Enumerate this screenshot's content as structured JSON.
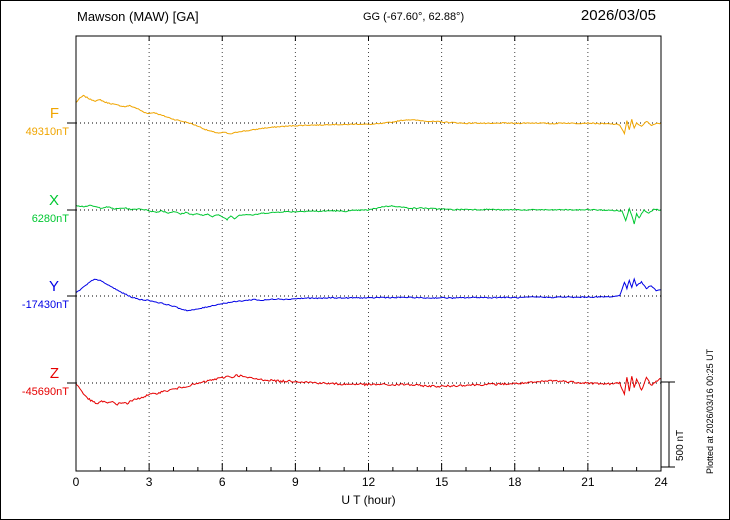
{
  "header": {
    "station": "Mawson (MAW)  [GA]",
    "coords": "GG (-67.60°,  62.88°)",
    "date": "2026/03/05"
  },
  "footer": {
    "plotted_at": "Plotted at 2026/03/16 00:25 UT"
  },
  "scale_bar": {
    "label": "500 nT",
    "nT": 500
  },
  "chart_data": {
    "type": "line",
    "title": "Mawson (MAW) [GA] magnetogram 2026/03/05",
    "xlabel": "U T (hour)",
    "xlim": [
      0,
      24
    ],
    "x_ticks": [
      0,
      3,
      6,
      9,
      12,
      15,
      18,
      21,
      24
    ],
    "grid": "dotted vertical at 3-hour intervals, dotted horizontal baseline per trace",
    "scale_nT_per_div": 500,
    "series": [
      {
        "name": "F",
        "baseline_label": "49310nT",
        "baseline_nT": 49310,
        "color": "#f0a500",
        "noise_nT": 3,
        "points": [
          [
            0,
            120
          ],
          [
            0.15,
            145
          ],
          [
            0.3,
            160
          ],
          [
            0.45,
            150
          ],
          [
            0.6,
            138
          ],
          [
            0.8,
            130
          ],
          [
            1,
            136
          ],
          [
            1.2,
            122
          ],
          [
            1.5,
            112
          ],
          [
            1.8,
            102
          ],
          [
            2,
            96
          ],
          [
            2.2,
            102
          ],
          [
            2.5,
            86
          ],
          [
            2.8,
            62
          ],
          [
            3,
            56
          ],
          [
            3.2,
            62
          ],
          [
            3.5,
            46
          ],
          [
            3.8,
            32
          ],
          [
            4,
            22
          ],
          [
            4.3,
            12
          ],
          [
            4.6,
            2
          ],
          [
            5,
            -18
          ],
          [
            5.3,
            -38
          ],
          [
            5.6,
            -52
          ],
          [
            5.9,
            -60
          ],
          [
            6.1,
            -54
          ],
          [
            6.3,
            -66
          ],
          [
            6.5,
            -58
          ],
          [
            6.7,
            -50
          ],
          [
            7,
            -46
          ],
          [
            7.3,
            -40
          ],
          [
            7.6,
            -32
          ],
          [
            8,
            -26
          ],
          [
            8.5,
            -20
          ],
          [
            9,
            -16
          ],
          [
            9.5,
            -12
          ],
          [
            10,
            -12
          ],
          [
            10.5,
            -8
          ],
          [
            11,
            -10
          ],
          [
            11.5,
            -6
          ],
          [
            12,
            -8
          ],
          [
            12.5,
            -4
          ],
          [
            13,
            6
          ],
          [
            13.3,
            14
          ],
          [
            13.6,
            20
          ],
          [
            14,
            16
          ],
          [
            14.5,
            10
          ],
          [
            15,
            6
          ],
          [
            15.5,
            2
          ],
          [
            16,
            -2
          ],
          [
            16.5,
            0
          ],
          [
            17,
            -4
          ],
          [
            17.5,
            0
          ],
          [
            18,
            -2
          ],
          [
            18.5,
            0
          ],
          [
            19,
            0
          ],
          [
            19.5,
            -4
          ],
          [
            20,
            0
          ],
          [
            20.5,
            -2
          ],
          [
            21,
            0
          ],
          [
            21.5,
            -4
          ],
          [
            22,
            -6
          ],
          [
            22.3,
            -10
          ],
          [
            22.5,
            -62
          ],
          [
            22.6,
            12
          ],
          [
            22.7,
            -42
          ],
          [
            22.8,
            22
          ],
          [
            22.9,
            -32
          ],
          [
            23,
            2
          ],
          [
            23.2,
            -22
          ],
          [
            23.4,
            10
          ],
          [
            23.6,
            -12
          ],
          [
            23.8,
            -4
          ],
          [
            24,
            0
          ]
        ]
      },
      {
        "name": "X",
        "baseline_label": "6280nT",
        "baseline_nT": 6280,
        "color": "#00c832",
        "noise_nT": 3,
        "points": [
          [
            0,
            28
          ],
          [
            0.3,
            20
          ],
          [
            0.6,
            26
          ],
          [
            1,
            12
          ],
          [
            1.3,
            18
          ],
          [
            1.6,
            6
          ],
          [
            2,
            12
          ],
          [
            2.3,
            2
          ],
          [
            2.6,
            8
          ],
          [
            3,
            -4
          ],
          [
            3.3,
            -14
          ],
          [
            3.5,
            -4
          ],
          [
            3.8,
            -18
          ],
          [
            4,
            -8
          ],
          [
            4.3,
            -24
          ],
          [
            4.5,
            -14
          ],
          [
            4.8,
            -28
          ],
          [
            5,
            -22
          ],
          [
            5.2,
            -34
          ],
          [
            5.4,
            -24
          ],
          [
            5.6,
            -38
          ],
          [
            5.8,
            -28
          ],
          [
            6,
            -40
          ],
          [
            6.2,
            -56
          ],
          [
            6.35,
            -34
          ],
          [
            6.5,
            -50
          ],
          [
            6.7,
            -30
          ],
          [
            7,
            -26
          ],
          [
            7.3,
            -30
          ],
          [
            7.6,
            -20
          ],
          [
            8,
            -16
          ],
          [
            8.5,
            -10
          ],
          [
            9,
            -10
          ],
          [
            9.5,
            -6
          ],
          [
            10,
            -8
          ],
          [
            10.5,
            -4
          ],
          [
            11,
            -8
          ],
          [
            11.5,
            -2
          ],
          [
            12,
            0
          ],
          [
            12.3,
            10
          ],
          [
            12.6,
            20
          ],
          [
            13,
            24
          ],
          [
            13.4,
            16
          ],
          [
            13.8,
            10
          ],
          [
            14.2,
            12
          ],
          [
            14.6,
            8
          ],
          [
            15,
            6
          ],
          [
            15.5,
            2
          ],
          [
            16,
            4
          ],
          [
            16.5,
            2
          ],
          [
            17,
            4
          ],
          [
            17.5,
            0
          ],
          [
            18,
            2
          ],
          [
            18.5,
            0
          ],
          [
            19,
            2
          ],
          [
            19.5,
            0
          ],
          [
            20,
            2
          ],
          [
            20.5,
            0
          ],
          [
            21,
            2
          ],
          [
            21.5,
            0
          ],
          [
            22,
            -2
          ],
          [
            22.4,
            -6
          ],
          [
            22.55,
            -62
          ],
          [
            22.7,
            10
          ],
          [
            22.8,
            -32
          ],
          [
            22.9,
            -80
          ],
          [
            23,
            -18
          ],
          [
            23.1,
            -48
          ],
          [
            23.3,
            2
          ],
          [
            23.5,
            -20
          ],
          [
            23.7,
            4
          ],
          [
            24,
            -2
          ]
        ]
      },
      {
        "name": "Y",
        "baseline_label": "-17430nT",
        "baseline_nT": -17430,
        "color": "#0000e6",
        "noise_nT": 3,
        "points": [
          [
            0,
            18
          ],
          [
            0.2,
            40
          ],
          [
            0.4,
            62
          ],
          [
            0.6,
            85
          ],
          [
            0.8,
            100
          ],
          [
            1,
            90
          ],
          [
            1.2,
            74
          ],
          [
            1.5,
            50
          ],
          [
            1.8,
            26
          ],
          [
            2,
            12
          ],
          [
            2.3,
            -8
          ],
          [
            2.6,
            -20
          ],
          [
            3,
            -26
          ],
          [
            3.3,
            -36
          ],
          [
            3.6,
            -46
          ],
          [
            4,
            -60
          ],
          [
            4.3,
            -76
          ],
          [
            4.6,
            -86
          ],
          [
            4.9,
            -80
          ],
          [
            5.2,
            -70
          ],
          [
            5.5,
            -60
          ],
          [
            5.8,
            -50
          ],
          [
            6.1,
            -42
          ],
          [
            6.4,
            -36
          ],
          [
            6.7,
            -30
          ],
          [
            7,
            -26
          ],
          [
            7.3,
            -20
          ],
          [
            7.6,
            -26
          ],
          [
            8,
            -20
          ],
          [
            8.3,
            -16
          ],
          [
            8.6,
            -20
          ],
          [
            9,
            -16
          ],
          [
            9.5,
            -12
          ],
          [
            10,
            -14
          ],
          [
            10.5,
            -10
          ],
          [
            11,
            -12
          ],
          [
            11.5,
            -10
          ],
          [
            12,
            -12
          ],
          [
            12.5,
            -8
          ],
          [
            13,
            -10
          ],
          [
            13.5,
            -8
          ],
          [
            14,
            -10
          ],
          [
            14.5,
            -12
          ],
          [
            15,
            -10
          ],
          [
            15.5,
            -12
          ],
          [
            16,
            -10
          ],
          [
            16.5,
            -8
          ],
          [
            17,
            -10
          ],
          [
            17.5,
            -8
          ],
          [
            18,
            -10
          ],
          [
            18.5,
            -8
          ],
          [
            19,
            -6
          ],
          [
            19.5,
            -8
          ],
          [
            20,
            -6
          ],
          [
            20.5,
            -8
          ],
          [
            21,
            -6
          ],
          [
            21.5,
            -6
          ],
          [
            22,
            -4
          ],
          [
            22.3,
            2
          ],
          [
            22.5,
            80
          ],
          [
            22.6,
            44
          ],
          [
            22.7,
            92
          ],
          [
            22.8,
            52
          ],
          [
            22.9,
            100
          ],
          [
            23,
            62
          ],
          [
            23.2,
            82
          ],
          [
            23.4,
            44
          ],
          [
            23.6,
            62
          ],
          [
            23.8,
            32
          ],
          [
            24,
            36
          ]
        ]
      },
      {
        "name": "Z",
        "baseline_label": "-45690nT",
        "baseline_nT": -45690,
        "color": "#e60000",
        "noise_nT": 6,
        "points": [
          [
            0,
            -2
          ],
          [
            0.1,
            -22
          ],
          [
            0.3,
            -62
          ],
          [
            0.5,
            -92
          ],
          [
            0.7,
            -112
          ],
          [
            0.9,
            -122
          ],
          [
            1.1,
            -106
          ],
          [
            1.3,
            -120
          ],
          [
            1.5,
            -110
          ],
          [
            1.7,
            -126
          ],
          [
            1.9,
            -114
          ],
          [
            2.1,
            -120
          ],
          [
            2.3,
            -104
          ],
          [
            2.5,
            -94
          ],
          [
            2.7,
            -84
          ],
          [
            3,
            -70
          ],
          [
            3.3,
            -60
          ],
          [
            3.6,
            -50
          ],
          [
            3.9,
            -40
          ],
          [
            4.2,
            -30
          ],
          [
            4.5,
            -20
          ],
          [
            4.8,
            -10
          ],
          [
            5.1,
            0
          ],
          [
            5.4,
            12
          ],
          [
            5.7,
            22
          ],
          [
            6,
            30
          ],
          [
            6.2,
            40
          ],
          [
            6.4,
            34
          ],
          [
            6.6,
            46
          ],
          [
            6.8,
            40
          ],
          [
            7,
            32
          ],
          [
            7.3,
            26
          ],
          [
            7.6,
            20
          ],
          [
            8,
            16
          ],
          [
            8.4,
            10
          ],
          [
            8.8,
            12
          ],
          [
            9.2,
            8
          ],
          [
            9.6,
            4
          ],
          [
            10,
            0
          ],
          [
            10.5,
            -4
          ],
          [
            11,
            -8
          ],
          [
            11.5,
            -6
          ],
          [
            12,
            -10
          ],
          [
            12.5,
            -8
          ],
          [
            13,
            -12
          ],
          [
            13.5,
            -8
          ],
          [
            14,
            -14
          ],
          [
            14.5,
            -18
          ],
          [
            15,
            -20
          ],
          [
            15.5,
            -16
          ],
          [
            16,
            -12
          ],
          [
            16.5,
            -10
          ],
          [
            17,
            -8
          ],
          [
            17.5,
            -6
          ],
          [
            18,
            -4
          ],
          [
            18.5,
            0
          ],
          [
            19,
            6
          ],
          [
            19.5,
            14
          ],
          [
            20,
            10
          ],
          [
            20.5,
            4
          ],
          [
            21,
            0
          ],
          [
            21.5,
            -4
          ],
          [
            22,
            -6
          ],
          [
            22.3,
            0
          ],
          [
            22.5,
            -60
          ],
          [
            22.6,
            32
          ],
          [
            22.7,
            -52
          ],
          [
            22.8,
            40
          ],
          [
            22.9,
            -30
          ],
          [
            23,
            22
          ],
          [
            23.2,
            -40
          ],
          [
            23.4,
            30
          ],
          [
            23.6,
            -12
          ],
          [
            23.8,
            10
          ],
          [
            24,
            24
          ]
        ]
      }
    ]
  }
}
